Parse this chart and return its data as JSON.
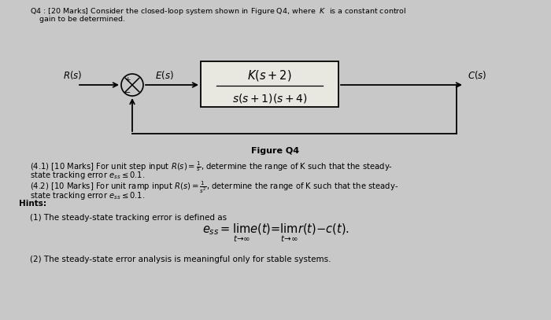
{
  "bg_color": "#d8d8d8",
  "text_color": "#111111",
  "figure_label": "Figure Q4",
  "block_num": "$K(s+2)$",
  "block_den": "$s(s+1)(s+4)$",
  "label_Rs": "$R(s)$",
  "label_Es": "$E(s)$",
  "label_Cs": "$C(s)$",
  "title_line1": "Q4 : [20 Marks] Consider the closed-loop system shown in Figure Q4, where  $K$  is a constant control",
  "title_line2": "gain to be determined.",
  "q41_line1": "(4.1) [10 Marks] For unit step input $R(s) = \\frac{1}{s}$, determine the range of K such that the steady-",
  "q41_line2": "state tracking error $e_{ss} \\leq 0.1$.",
  "q42_line1": "(4.2) [10 Marks] For unit ramp input $R(s) = \\frac{1}{s^2}$, determine the range of K such that the steady-",
  "q42_line2": "state tracking error $e_{ss} \\leq 0.1$.",
  "hints_label": "Hints:",
  "hint1_line": "(1) The steady-state tracking error is defined as",
  "hint1_eq": "$e_{ss} = \\lim_{t \\to \\infty} e(t) = \\lim_{t \\to \\infty} r(t) - c(t).$",
  "hint2_line": "(2) The steady-state error analysis is meaningful only for stable systems."
}
